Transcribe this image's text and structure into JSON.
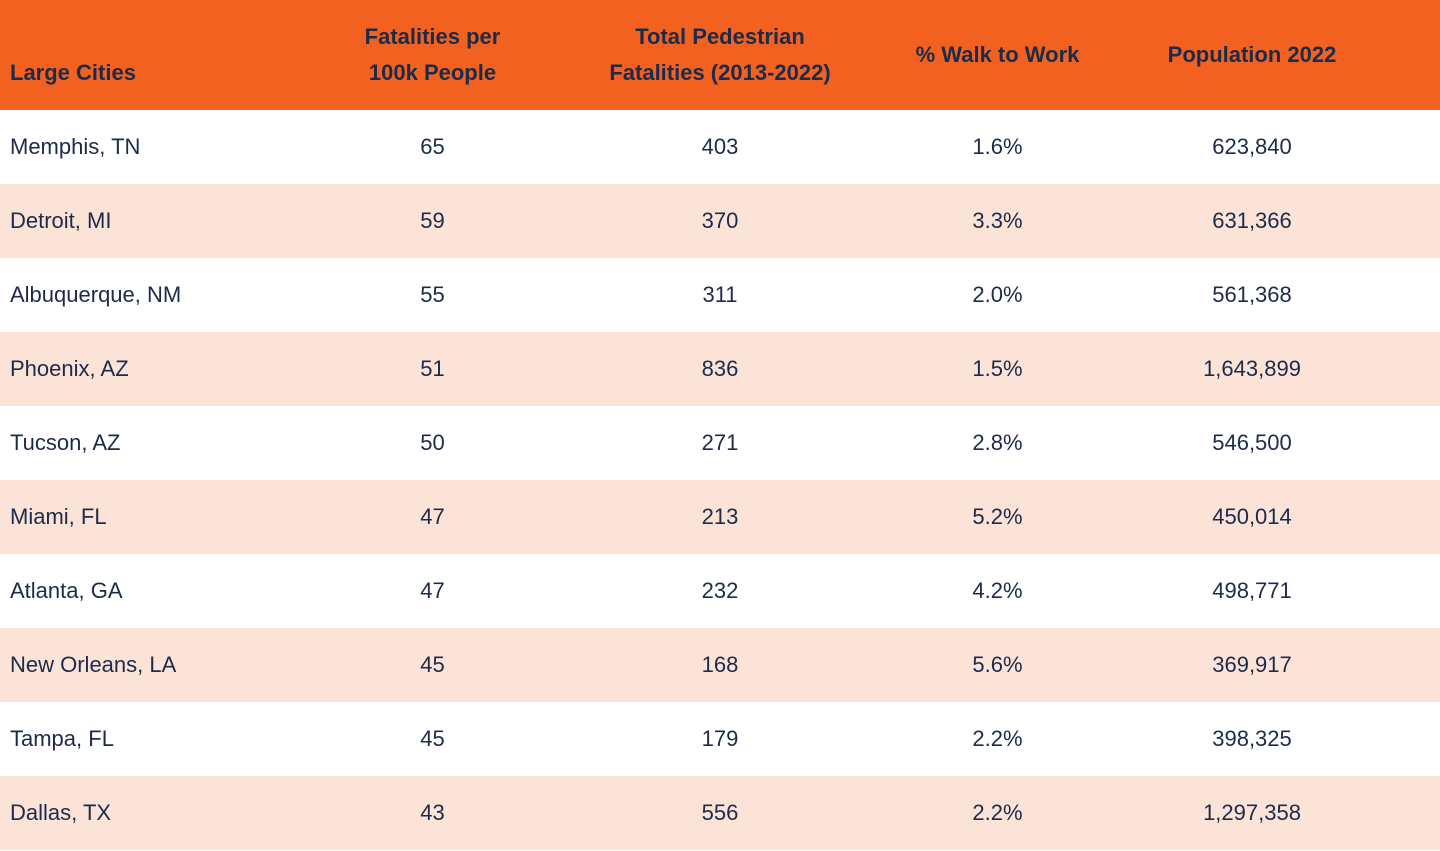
{
  "colors": {
    "header_bg": "#F2611F",
    "stripe_bg": "#FCE3D8",
    "row_bg": "#FFFFFF",
    "text": "#1C2B4A"
  },
  "display": {
    "header": [
      "Large Cities",
      "Fatalities per\n100k People",
      "Total Pedestrian\nFatalities (2013-2022)",
      "% Walk to Work",
      "Population 2022"
    ]
  },
  "chart_data": {
    "type": "table",
    "title": "",
    "columns": [
      "Large Cities",
      "Fatalities per 100k People",
      "Total Pedestrian Fatalities (2013-2022)",
      "% Walk to Work",
      "Population 2022"
    ],
    "rows": [
      [
        "Memphis, TN",
        "65",
        "403",
        "1.6%",
        "623,840"
      ],
      [
        "Detroit, MI",
        "59",
        "370",
        "3.3%",
        "631,366"
      ],
      [
        "Albuquerque, NM",
        "55",
        "311",
        "2.0%",
        "561,368"
      ],
      [
        "Phoenix, AZ",
        "51",
        "836",
        "1.5%",
        "1,643,899"
      ],
      [
        "Tucson, AZ",
        "50",
        "271",
        "2.8%",
        "546,500"
      ],
      [
        "Miami, FL",
        "47",
        "213",
        "5.2%",
        "450,014"
      ],
      [
        "Atlanta, GA",
        "47",
        "232",
        "4.2%",
        "498,771"
      ],
      [
        "New Orleans, LA",
        "45",
        "168",
        "5.6%",
        "369,917"
      ],
      [
        "Tampa, FL",
        "45",
        "179",
        "2.2%",
        "398,325"
      ],
      [
        "Dallas, TX",
        "43",
        "556",
        "2.2%",
        "1,297,358"
      ]
    ]
  }
}
